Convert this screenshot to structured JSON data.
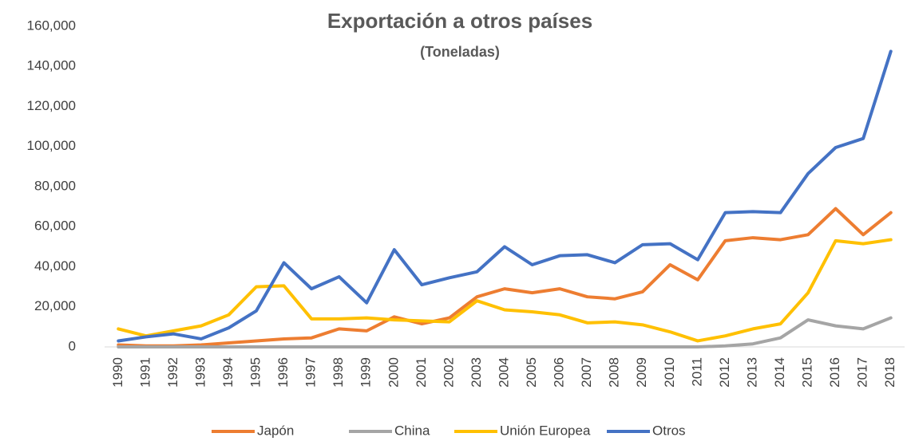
{
  "chart_data": {
    "type": "line",
    "title": "Exportación a otros países",
    "subtitle": "(Toneladas)",
    "categories": [
      "1990",
      "1991",
      "1992",
      "1993",
      "1994",
      "1995",
      "1996",
      "1997",
      "1998",
      "1999",
      "2000",
      "2001",
      "2002",
      "2003",
      "2004",
      "2005",
      "2006",
      "2007",
      "2008",
      "2009",
      "2010",
      "2011",
      "2012",
      "2013",
      "2014",
      "2015",
      "2016",
      "2017",
      "2018"
    ],
    "series": [
      {
        "name": "Japón",
        "color": "#ed7d31",
        "values": [
          1000,
          500,
          500,
          1000,
          2000,
          3000,
          4000,
          4500,
          9000,
          8000,
          15000,
          11500,
          14500,
          25000,
          29000,
          27000,
          29000,
          25000,
          24000,
          27500,
          41000,
          33500,
          53000,
          54500,
          53500,
          56000,
          69000,
          56000,
          67000
        ]
      },
      {
        "name": "China",
        "color": "#a5a5a5",
        "values": [
          0,
          0,
          0,
          0,
          0,
          0,
          0,
          0,
          0,
          0,
          0,
          0,
          0,
          0,
          0,
          0,
          0,
          0,
          0,
          0,
          0,
          0,
          500,
          1500,
          4500,
          13500,
          10500,
          9000,
          14500
        ]
      },
      {
        "name": "Unión Europea",
        "color": "#ffc000",
        "values": [
          9000,
          5500,
          8000,
          10500,
          16000,
          30000,
          30500,
          14000,
          14000,
          14500,
          13500,
          13000,
          12500,
          23000,
          18500,
          17500,
          16000,
          12000,
          12500,
          11000,
          7500,
          3000,
          5500,
          9000,
          11500,
          27000,
          53000,
          51500,
          53500
        ]
      },
      {
        "name": "Otros",
        "color": "#4472c4",
        "values": [
          3000,
          5000,
          6500,
          4000,
          9500,
          18000,
          42000,
          29000,
          35000,
          22000,
          48500,
          31000,
          34500,
          37500,
          50000,
          41000,
          45500,
          46000,
          42000,
          51000,
          51500,
          43500,
          67000,
          67500,
          67000,
          86500,
          99500,
          104000,
          147500
        ]
      }
    ],
    "ylim": [
      0,
      160000
    ],
    "yticks": [
      0,
      {
        "value": 20000,
        "label": "20,000"
      },
      {
        "value": 40000,
        "label": "40,000"
      },
      {
        "value": 60000,
        "label": "60,000"
      },
      {
        "value": 80000,
        "label": "80,000"
      },
      {
        "value": 100000,
        "label": "100,000"
      },
      {
        "value": 120000,
        "label": "120,000"
      },
      {
        "value": 140000,
        "label": "140,000"
      },
      {
        "value": 160000,
        "label": "160,000"
      }
    ],
    "grid": false,
    "legend": "bottom"
  }
}
